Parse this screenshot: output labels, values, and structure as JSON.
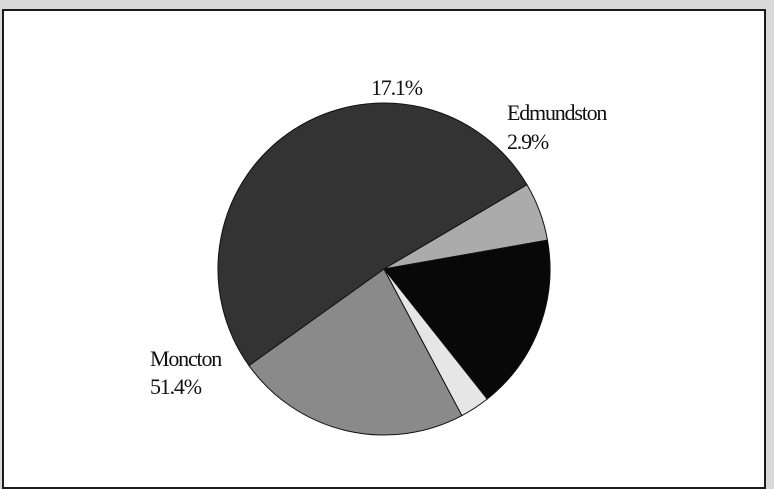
{
  "chart_data": {
    "type": "pie",
    "title": "",
    "slices": [
      {
        "label": "",
        "value": 22.9,
        "display": "",
        "color": "#8a8a8a"
      },
      {
        "label": "Moncton",
        "value": 51.4,
        "display": "51.4%",
        "color": "#333333"
      },
      {
        "label": "",
        "value": 5.7,
        "display": "",
        "color": "#ababab"
      },
      {
        "label": "",
        "value": 17.1,
        "display": "17.1%",
        "color": "#080808"
      },
      {
        "label": "Edmundston",
        "value": 2.9,
        "display": "2.9%",
        "color": "#e6e6e6"
      }
    ]
  }
}
